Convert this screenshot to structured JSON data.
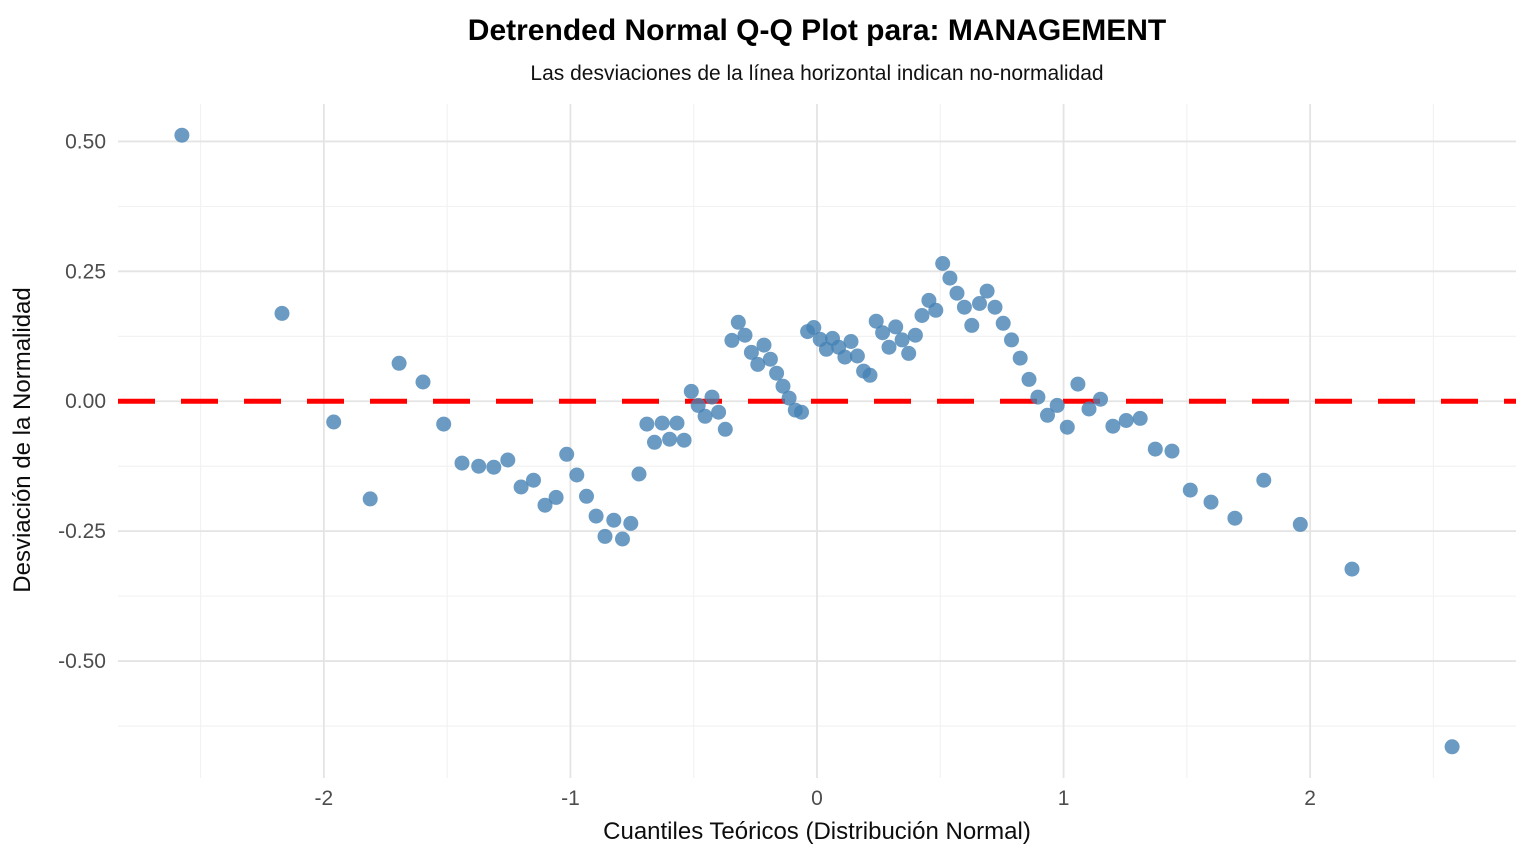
{
  "page": {
    "title": "Detrended Normal Q-Q Plot para: MANAGEMENT",
    "subtitle": "Las desviaciones de la línea horizontal indican no-normalidad"
  },
  "chart_data": {
    "type": "scatter",
    "title": "Detrended Normal Q-Q Plot para: MANAGEMENT",
    "subtitle": "Las desviaciones de la línea horizontal indican no-normalidad",
    "xlabel": "Cuantiles Teóricos (Distribución Normal)",
    "ylabel": "Desviación de la Normalidad",
    "xlim": [
      -2.835,
      2.835
    ],
    "ylim": [
      -0.725,
      0.572
    ],
    "grid": true,
    "legend_position": "none",
    "x_ticks": {
      "values": [
        -2,
        -1,
        0,
        1,
        2
      ],
      "labels": [
        "-2",
        "-1",
        "0",
        "1",
        "2"
      ]
    },
    "y_ticks": {
      "values": [
        0.5,
        0.25,
        0.0,
        -0.25,
        -0.5
      ],
      "labels": [
        "0.50",
        "0.25",
        "0.00",
        "-0.25",
        "-0.50"
      ]
    },
    "x_minor_ticks": [
      -2.5,
      -1.5,
      -0.5,
      0.5,
      1.5,
      2.5
    ],
    "y_minor_ticks": [
      0.375,
      0.125,
      -0.125,
      -0.375,
      -0.625
    ],
    "reference_line": {
      "y": 0.0,
      "color": "#ff0000",
      "style": "dashed"
    },
    "point_color": "#4682B4",
    "point_opacity": 0.8,
    "series": [
      {
        "name": "Desviación de la Normalidad",
        "points": [
          [
            -2.576,
            0.512
          ],
          [
            -2.17,
            0.169
          ],
          [
            -1.96,
            -0.04
          ],
          [
            -1.812,
            -0.188
          ],
          [
            -1.695,
            0.073
          ],
          [
            -1.598,
            0.037
          ],
          [
            -1.514,
            -0.044
          ],
          [
            -1.44,
            -0.119
          ],
          [
            -1.372,
            -0.125
          ],
          [
            -1.311,
            -0.127
          ],
          [
            -1.254,
            -0.113
          ],
          [
            -1.2,
            -0.165
          ],
          [
            -1.15,
            -0.152
          ],
          [
            -1.103,
            -0.2
          ],
          [
            -1.058,
            -0.185
          ],
          [
            -1.015,
            -0.102
          ],
          [
            -0.974,
            -0.142
          ],
          [
            -0.935,
            -0.183
          ],
          [
            -0.896,
            -0.221
          ],
          [
            -0.86,
            -0.26
          ],
          [
            -0.824,
            -0.229
          ],
          [
            -0.789,
            -0.265
          ],
          [
            -0.755,
            -0.235
          ],
          [
            -0.722,
            -0.14
          ],
          [
            -0.69,
            -0.044
          ],
          [
            -0.659,
            -0.079
          ],
          [
            -0.628,
            -0.042
          ],
          [
            -0.598,
            -0.073
          ],
          [
            -0.568,
            -0.042
          ],
          [
            -0.539,
            -0.075
          ],
          [
            -0.51,
            0.019
          ],
          [
            -0.482,
            -0.008
          ],
          [
            -0.454,
            -0.029
          ],
          [
            -0.426,
            0.008
          ],
          [
            -0.399,
            -0.021
          ],
          [
            -0.372,
            -0.054
          ],
          [
            -0.345,
            0.117
          ],
          [
            -0.319,
            0.152
          ],
          [
            -0.292,
            0.127
          ],
          [
            -0.266,
            0.094
          ],
          [
            -0.24,
            0.071
          ],
          [
            -0.215,
            0.108
          ],
          [
            -0.189,
            0.081
          ],
          [
            -0.164,
            0.054
          ],
          [
            -0.138,
            0.029
          ],
          [
            -0.113,
            0.006
          ],
          [
            -0.088,
            -0.017
          ],
          [
            -0.063,
            -0.021
          ],
          [
            -0.038,
            0.134
          ],
          [
            -0.013,
            0.142
          ],
          [
            0.013,
            0.119
          ],
          [
            0.038,
            0.1
          ],
          [
            0.063,
            0.121
          ],
          [
            0.088,
            0.104
          ],
          [
            0.113,
            0.085
          ],
          [
            0.138,
            0.115
          ],
          [
            0.164,
            0.087
          ],
          [
            0.189,
            0.058
          ],
          [
            0.215,
            0.05
          ],
          [
            0.24,
            0.154
          ],
          [
            0.266,
            0.132
          ],
          [
            0.292,
            0.104
          ],
          [
            0.319,
            0.143
          ],
          [
            0.345,
            0.118
          ],
          [
            0.372,
            0.092
          ],
          [
            0.399,
            0.127
          ],
          [
            0.426,
            0.165
          ],
          [
            0.454,
            0.194
          ],
          [
            0.482,
            0.175
          ],
          [
            0.51,
            0.265
          ],
          [
            0.539,
            0.237
          ],
          [
            0.568,
            0.208
          ],
          [
            0.598,
            0.181
          ],
          [
            0.628,
            0.146
          ],
          [
            0.659,
            0.188
          ],
          [
            0.69,
            0.212
          ],
          [
            0.722,
            0.181
          ],
          [
            0.755,
            0.15
          ],
          [
            0.789,
            0.118
          ],
          [
            0.824,
            0.083
          ],
          [
            0.86,
            0.042
          ],
          [
            0.896,
            0.008
          ],
          [
            0.935,
            -0.027
          ],
          [
            0.974,
            -0.008
          ],
          [
            1.015,
            -0.05
          ],
          [
            1.058,
            0.033
          ],
          [
            1.103,
            -0.015
          ],
          [
            1.15,
            0.004
          ],
          [
            1.2,
            -0.048
          ],
          [
            1.254,
            -0.037
          ],
          [
            1.311,
            -0.033
          ],
          [
            1.372,
            -0.092
          ],
          [
            1.44,
            -0.096
          ],
          [
            1.514,
            -0.171
          ],
          [
            1.598,
            -0.194
          ],
          [
            1.695,
            -0.225
          ],
          [
            1.812,
            -0.152
          ],
          [
            1.96,
            -0.237
          ],
          [
            2.17,
            -0.323
          ],
          [
            2.576,
            -0.665
          ]
        ]
      }
    ]
  },
  "style": {
    "grid_major_color": "#e4e4e4",
    "grid_minor_color": "#f1f1f1",
    "background": "#ffffff"
  }
}
